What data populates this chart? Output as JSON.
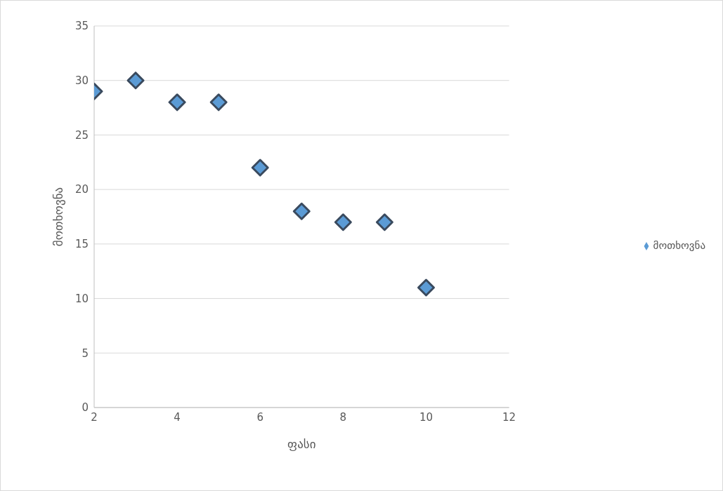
{
  "chart_data": {
    "type": "scatter",
    "xlabel": "ფასი",
    "ylabel": "მოთხოვნა",
    "x": [
      2,
      3,
      4,
      5,
      6,
      7,
      8,
      9,
      10
    ],
    "series": [
      {
        "name": "მოთხოვნა",
        "color": "#5b9bd5",
        "values": [
          29,
          30,
          28,
          28,
          22,
          18,
          17,
          17,
          11
        ]
      }
    ],
    "xlim": [
      2,
      12
    ],
    "xticks": [
      2,
      4,
      6,
      8,
      10,
      12
    ],
    "ylim": [
      0,
      35
    ],
    "yticks": [
      0,
      5,
      10,
      15,
      20,
      25,
      30,
      35
    ],
    "grid": "y",
    "legend": "right",
    "marker": "diamond"
  }
}
